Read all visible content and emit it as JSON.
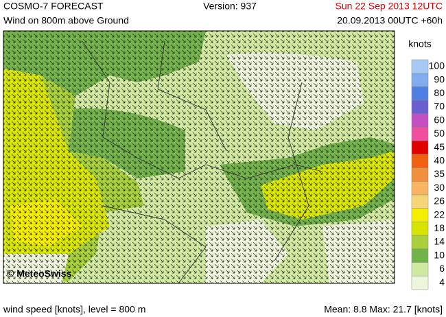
{
  "header": {
    "title": "COSMO-7 FORECAST",
    "version": "Version: 937",
    "valid_time": "Sun 22 Sep 2013 12UTC",
    "subtitle": "Wind on 800m above Ground",
    "run": "20.09.2013 00UTC +60h"
  },
  "map": {
    "copyright": "© MeteoSwiss"
  },
  "legend": {
    "title": "knots",
    "items": [
      {
        "label": 100,
        "color": "#a9c9f5"
      },
      {
        "label": 90,
        "color": "#7fadf0"
      },
      {
        "label": 80,
        "color": "#4f7fe0"
      },
      {
        "label": 70,
        "color": "#6a5fd0"
      },
      {
        "label": 60,
        "color": "#c34fc0"
      },
      {
        "label": 50,
        "color": "#f04fa0"
      },
      {
        "label": 45,
        "color": "#e00000"
      },
      {
        "label": 40,
        "color": "#f06010"
      },
      {
        "label": 35,
        "color": "#f0903c"
      },
      {
        "label": 30,
        "color": "#f8b460"
      },
      {
        "label": 26,
        "color": "#f8d478"
      },
      {
        "label": 22,
        "color": "#f5ee00"
      },
      {
        "label": 18,
        "color": "#d6e400"
      },
      {
        "label": 14,
        "color": "#a8cf3c"
      },
      {
        "label": 10,
        "color": "#72b24a"
      },
      {
        "label": 6,
        "color": "#cfe9a0"
      },
      {
        "label": 4,
        "color": "#eef6dc"
      }
    ]
  },
  "footer": {
    "left": "wind speed [knots], level = 800 m",
    "right": "Mean:   8.8 Max:  21.7 [knots]"
  }
}
